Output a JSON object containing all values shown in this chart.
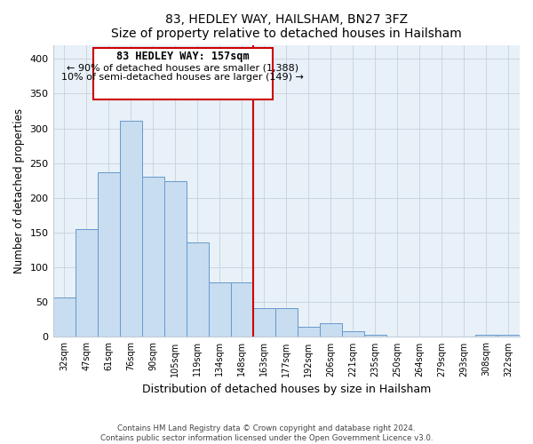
{
  "title": "83, HEDLEY WAY, HAILSHAM, BN27 3FZ",
  "subtitle": "Size of property relative to detached houses in Hailsham",
  "xlabel": "Distribution of detached houses by size in Hailsham",
  "ylabel": "Number of detached properties",
  "categories": [
    "32sqm",
    "47sqm",
    "61sqm",
    "76sqm",
    "90sqm",
    "105sqm",
    "119sqm",
    "134sqm",
    "148sqm",
    "163sqm",
    "177sqm",
    "192sqm",
    "206sqm",
    "221sqm",
    "235sqm",
    "250sqm",
    "264sqm",
    "279sqm",
    "293sqm",
    "308sqm",
    "322sqm"
  ],
  "bar_heights": [
    57,
    155,
    237,
    311,
    231,
    224,
    136,
    79,
    79,
    42,
    42,
    15,
    20,
    8,
    3,
    0,
    0,
    0,
    0,
    3,
    3
  ],
  "bar_color": "#c8ddf0",
  "bar_edge_color": "#6699cc",
  "vline_x_index": 9,
  "annotation_title": "83 HEDLEY WAY: 157sqm",
  "annotation_line1": "← 90% of detached houses are smaller (1,388)",
  "annotation_line2": "10% of semi-detached houses are larger (149) →",
  "vline_color": "#cc0000",
  "ylim": [
    0,
    420
  ],
  "yticks": [
    0,
    50,
    100,
    150,
    200,
    250,
    300,
    350,
    400
  ],
  "footer_line1": "Contains HM Land Registry data © Crown copyright and database right 2024.",
  "footer_line2": "Contains public sector information licensed under the Open Government Licence v3.0.",
  "plot_bg_color": "#e8f0f8",
  "fig_bg_color": "#ffffff",
  "grid_color": "#c0ccd8"
}
